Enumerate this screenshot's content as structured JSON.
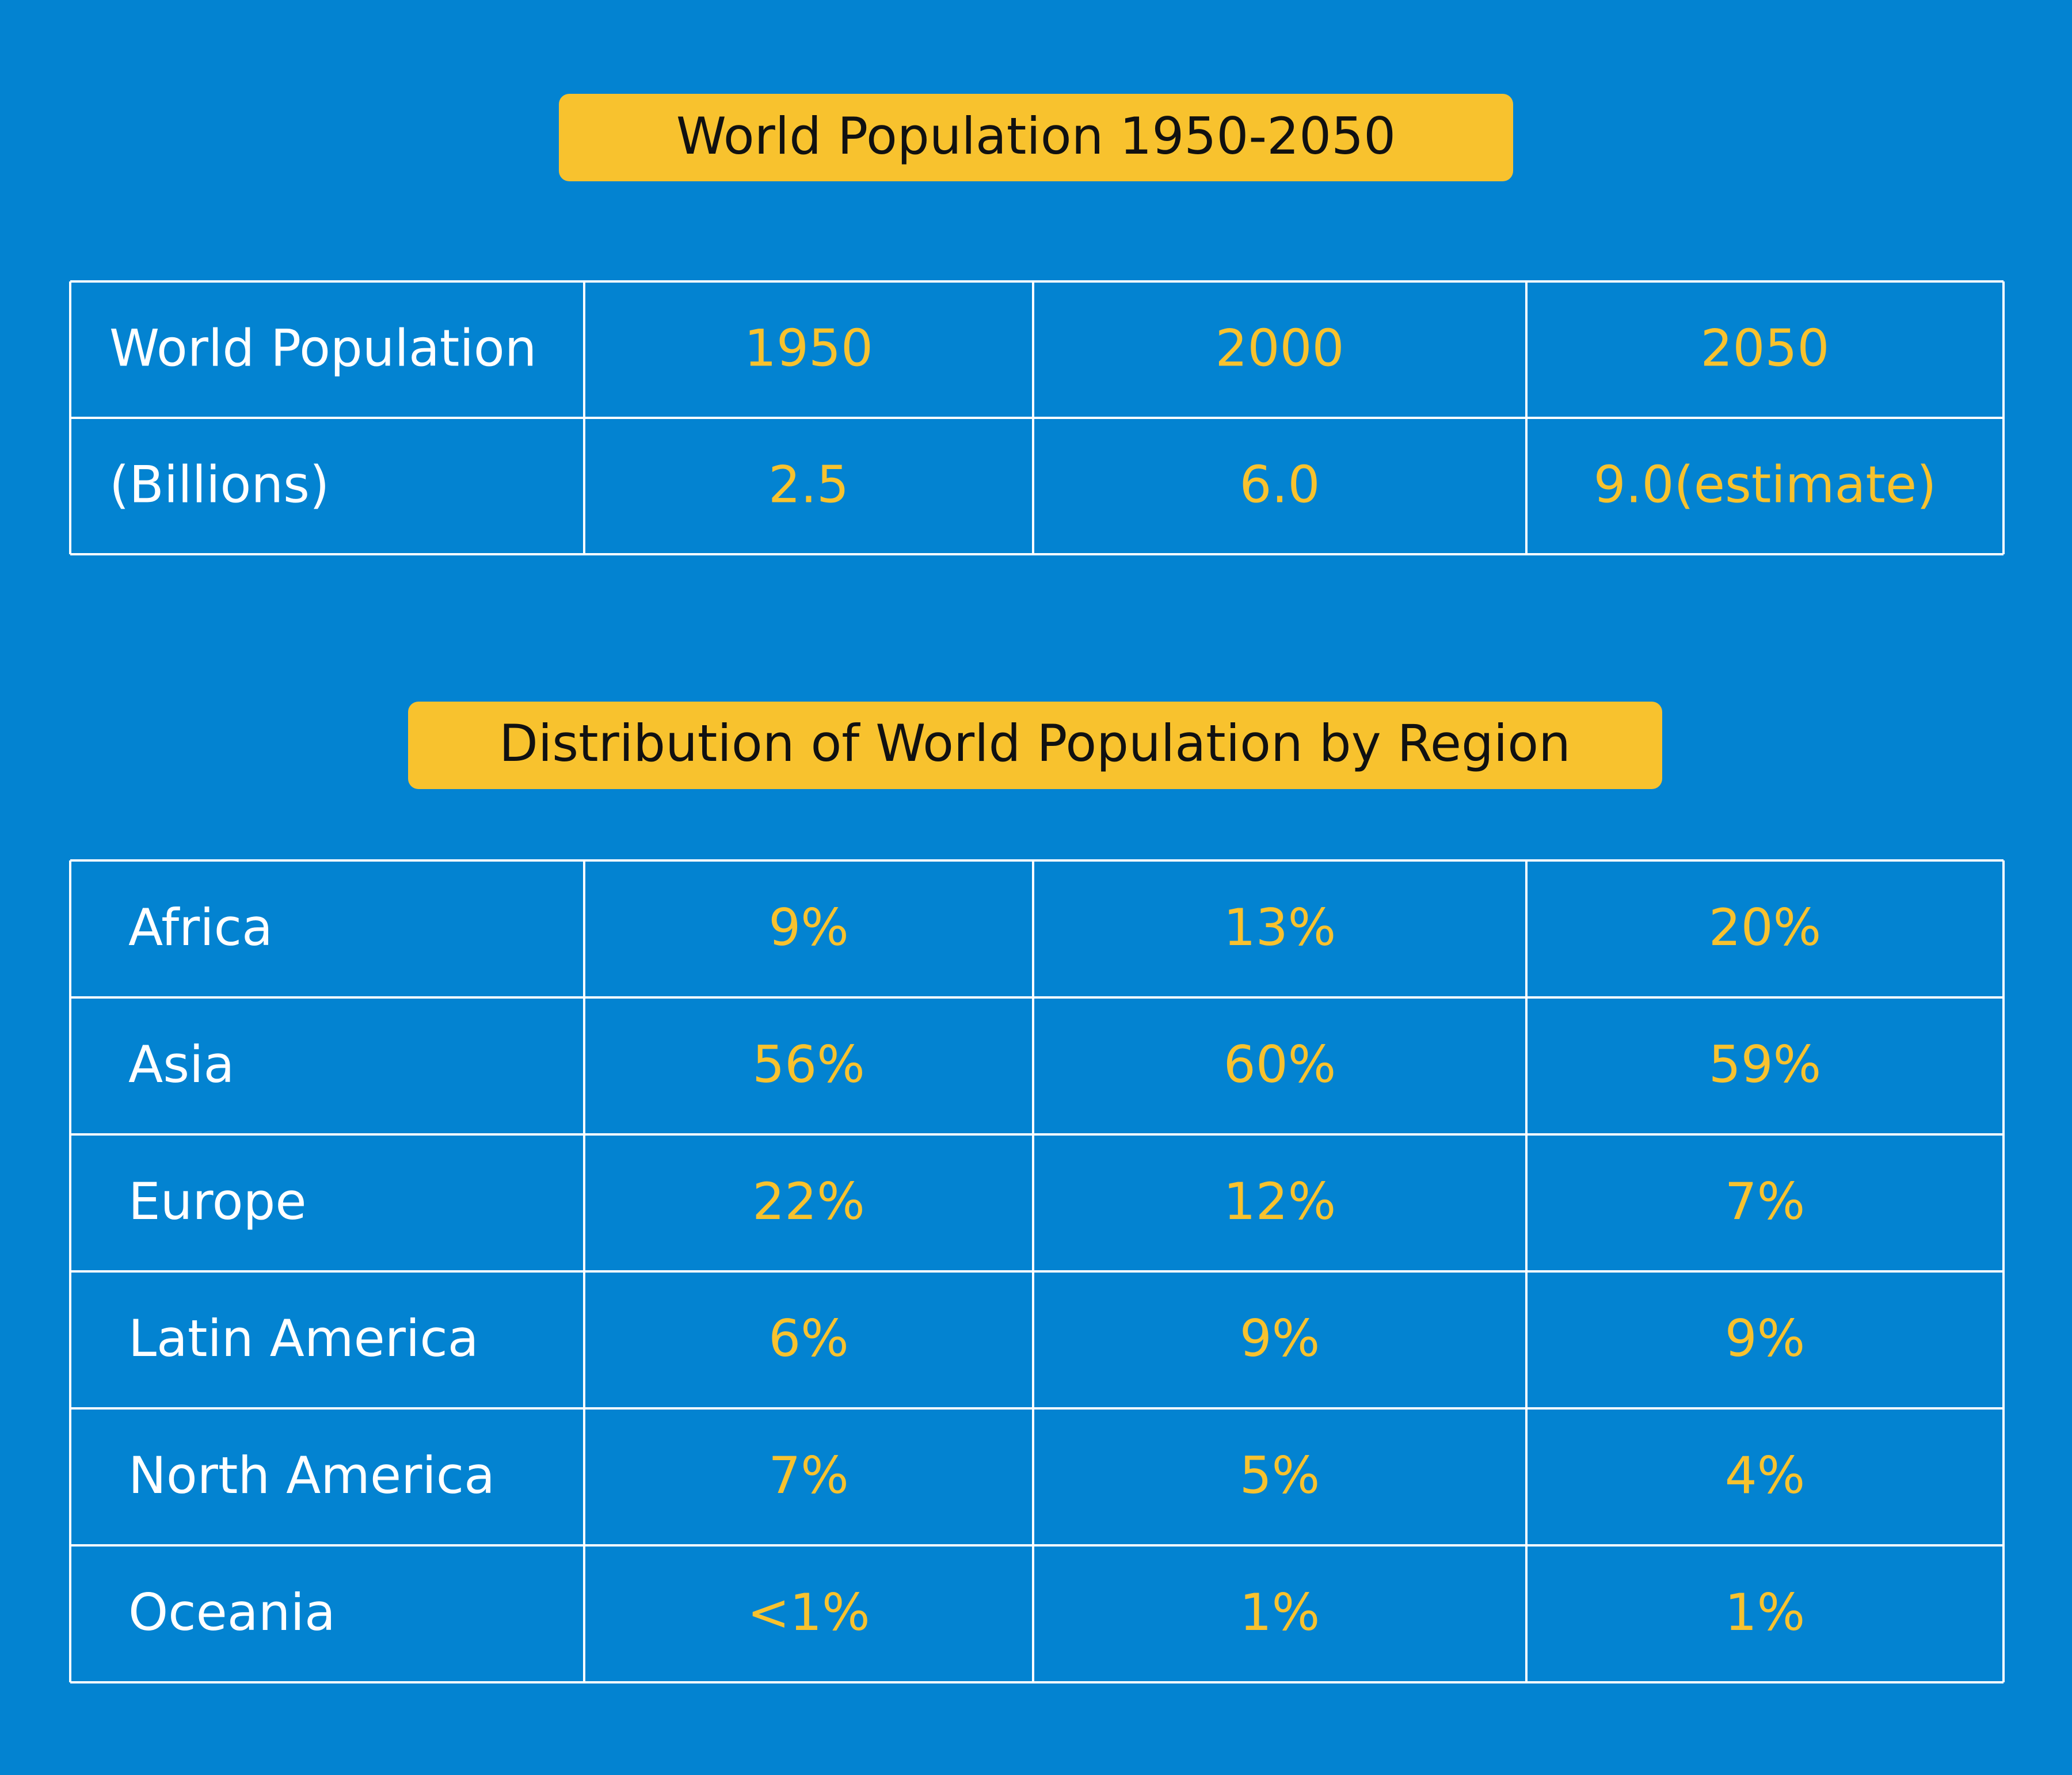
{
  "title1": "World Population 1950-2050",
  "table1": {
    "rows": [
      [
        "World Population",
        "1950",
        "2000",
        "2050"
      ],
      [
        "(Billions)",
        "2.5",
        "6.0",
        "9.0(estimate)"
      ]
    ]
  },
  "title2": "Distribution of World Population by Region",
  "table2": {
    "rows": [
      [
        "Africa",
        "9%",
        "13%",
        "20%"
      ],
      [
        "Asia",
        "56%",
        "60%",
        "59%"
      ],
      [
        "Europe",
        "22%",
        "12%",
        "7%"
      ],
      [
        "Latin America",
        "6%",
        "9%",
        "9%"
      ],
      [
        "North America",
        "7%",
        "5%",
        "4%"
      ],
      [
        "Oceania",
        "<1%",
        "1%",
        "1%"
      ]
    ]
  }
}
